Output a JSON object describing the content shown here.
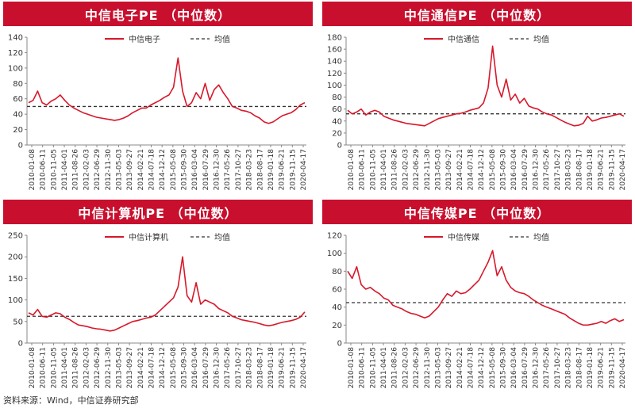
{
  "source_note": "资料来源：Wind，中信证券研究部",
  "chart_data": [
    {
      "type": "line",
      "title": "中信电子PE （中位数）",
      "ylim": [
        0,
        140
      ],
      "yticks": [
        0,
        20,
        40,
        60,
        80,
        100,
        120,
        140
      ],
      "mean": 50,
      "series": [
        {
          "name": "中信电子",
          "color": "#d7182a",
          "style": "solid"
        },
        {
          "name": "均值",
          "color": "#333333",
          "style": "dashed"
        }
      ],
      "values": [
        55,
        58,
        70,
        55,
        52,
        57,
        60,
        65,
        58,
        52,
        48,
        45,
        42,
        40,
        38,
        36,
        35,
        34,
        33,
        32,
        33,
        35,
        38,
        42,
        45,
        48,
        48,
        52,
        55,
        58,
        62,
        65,
        75,
        113,
        70,
        50,
        55,
        68,
        60,
        80,
        58,
        72,
        78,
        68,
        60,
        50,
        48,
        45,
        44,
        42,
        38,
        35,
        30,
        28,
        30,
        34,
        38,
        40,
        42,
        46,
        52,
        55
      ]
    },
    {
      "type": "line",
      "title": "中信通信PE （中位数）",
      "ylim": [
        0,
        180
      ],
      "yticks": [
        0,
        20,
        40,
        60,
        80,
        100,
        120,
        140,
        160,
        180
      ],
      "mean": 52,
      "series": [
        {
          "name": "中信通信",
          "color": "#d7182a",
          "style": "solid"
        },
        {
          "name": "均值",
          "color": "#333333",
          "style": "dashed"
        }
      ],
      "values": [
        58,
        52,
        55,
        60,
        50,
        55,
        58,
        55,
        48,
        45,
        42,
        40,
        38,
        36,
        35,
        34,
        33,
        32,
        36,
        40,
        44,
        46,
        48,
        50,
        52,
        53,
        55,
        58,
        60,
        62,
        70,
        95,
        165,
        100,
        80,
        110,
        75,
        85,
        70,
        78,
        65,
        62,
        60,
        55,
        52,
        50,
        46,
        42,
        38,
        35,
        32,
        33,
        36,
        48,
        40,
        42,
        45,
        46,
        48,
        50,
        52,
        48
      ]
    },
    {
      "type": "line",
      "title": "中信计算机PE （中位数）",
      "ylim": [
        0,
        250
      ],
      "yticks": [
        0,
        50,
        100,
        150,
        200,
        250
      ],
      "mean": 62,
      "series": [
        {
          "name": "中信计算机",
          "color": "#d7182a",
          "style": "solid"
        },
        {
          "name": "均值",
          "color": "#333333",
          "style": "dashed"
        }
      ],
      "values": [
        70,
        65,
        78,
        62,
        60,
        65,
        70,
        68,
        60,
        55,
        48,
        42,
        40,
        38,
        35,
        33,
        32,
        30,
        28,
        30,
        35,
        40,
        45,
        50,
        52,
        55,
        58,
        60,
        65,
        75,
        85,
        95,
        105,
        130,
        200,
        110,
        95,
        140,
        90,
        100,
        95,
        90,
        80,
        75,
        70,
        62,
        58,
        54,
        52,
        50,
        48,
        45,
        42,
        40,
        42,
        45,
        48,
        50,
        52,
        55,
        60,
        72
      ]
    },
    {
      "type": "line",
      "title": "中信传媒PE （中位数）",
      "ylim": [
        0,
        120
      ],
      "yticks": [
        0,
        20,
        40,
        60,
        80,
        100,
        120
      ],
      "mean": 45,
      "series": [
        {
          "name": "中信传媒",
          "color": "#d7182a",
          "style": "solid"
        },
        {
          "name": "均值",
          "color": "#333333",
          "style": "dashed"
        }
      ],
      "values": [
        80,
        72,
        85,
        65,
        60,
        62,
        58,
        55,
        50,
        48,
        42,
        40,
        38,
        35,
        33,
        32,
        30,
        28,
        30,
        35,
        40,
        48,
        55,
        52,
        58,
        55,
        56,
        60,
        65,
        70,
        80,
        90,
        103,
        75,
        85,
        70,
        62,
        58,
        56,
        55,
        52,
        48,
        45,
        42,
        40,
        38,
        36,
        34,
        32,
        28,
        25,
        22,
        20,
        20,
        21,
        22,
        24,
        22,
        25,
        27,
        24,
        26
      ]
    }
  ],
  "x_ticks": [
    "2010-01-08",
    "2010-06-11",
    "2010-11-05",
    "2011-04-01",
    "2011-08-26",
    "2012-02-03",
    "2012-06-29",
    "2012-11-30",
    "2013-05-03",
    "2013-09-27",
    "2014-02-21",
    "2014-07-18",
    "2014-12-12",
    "2015-05-08",
    "2015-09-30",
    "2016-03-04",
    "2016-07-29",
    "2016-12-30",
    "2017-05-26",
    "2017-10-27",
    "2018-03-23",
    "2018-08-17",
    "2019-01-18",
    "2019-06-21",
    "2019-11-15",
    "2020-04-17"
  ]
}
